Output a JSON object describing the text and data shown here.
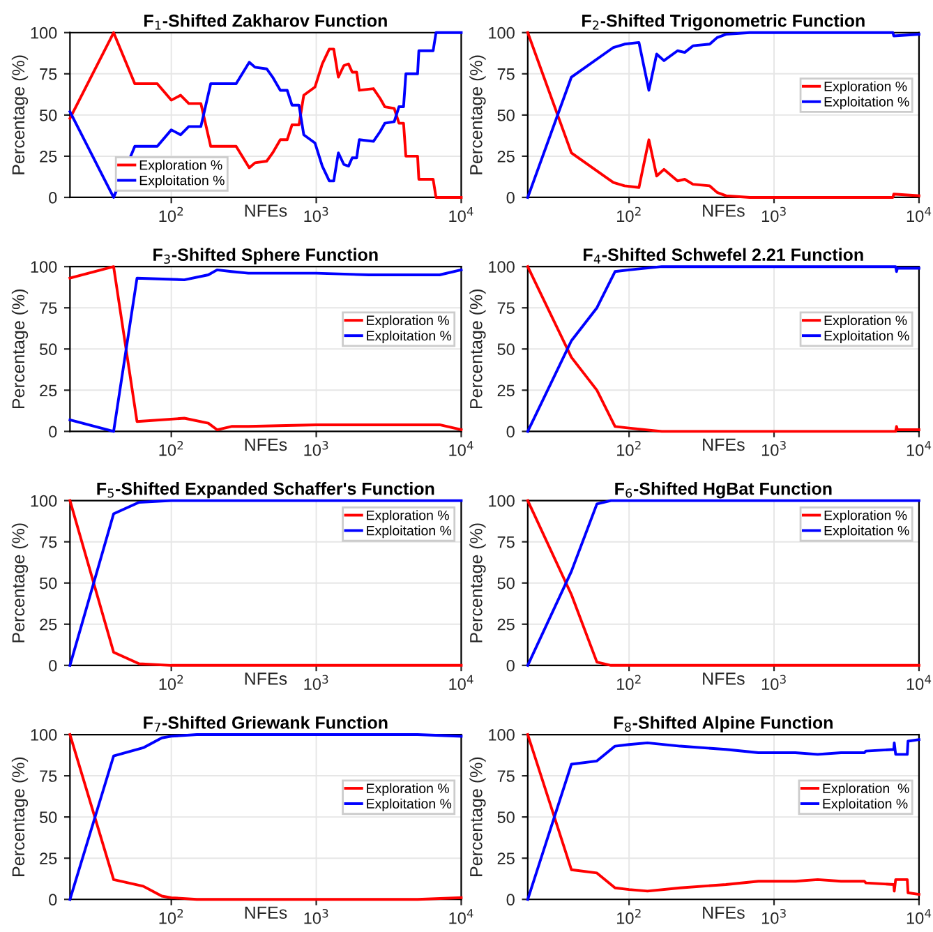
{
  "chart_data": [
    {
      "type": "line",
      "title": "F$_{1}$-Shifted Zakharov Function",
      "xlabel": "NFEs",
      "ylabel": "Percentage (%)",
      "log": "x",
      "grid": true,
      "legend": "bottom left",
      "xlim": [
        20,
        10000
      ],
      "ylim": [
        0,
        100
      ],
      "yticks": [
        0,
        25,
        50,
        75,
        100
      ],
      "xticks": [
        {
          "value": 100,
          "label": "10$^{2}$"
        },
        {
          "value": 1000,
          "label": "10$^{3}$"
        },
        {
          "value": 10000,
          "label": "10$^{4}$"
        }
      ],
      "x": [
        20,
        40,
        56,
        80,
        100,
        116,
        132,
        160,
        187,
        280,
        345,
        378,
        455,
        500,
        565,
        630,
        680,
        760,
        820,
        980,
        1100,
        1230,
        1320,
        1420,
        1550,
        1670,
        1770,
        1900,
        1980,
        2480,
        2760,
        2970,
        3450,
        3720,
        4000,
        4150,
        5000,
        5100,
        6400,
        6700,
        10000
      ],
      "series": [
        {
          "name": "Exploration %",
          "color": "#ff0000",
          "values": [
            48,
            100,
            69,
            69,
            59,
            62,
            57,
            57,
            31,
            31,
            18,
            21,
            22,
            27,
            35,
            35,
            44,
            44,
            62,
            67,
            81,
            90,
            90,
            73,
            80,
            81,
            76,
            76,
            65,
            66,
            60,
            55,
            54,
            45,
            45,
            25,
            25,
            11,
            11,
            0,
            0
          ]
        },
        {
          "name": "Exploitation %",
          "color": "#0000ff",
          "values": [
            52,
            0,
            31,
            31,
            41,
            38,
            43,
            43,
            69,
            69,
            82,
            79,
            78,
            73,
            65,
            65,
            56,
            56,
            38,
            33,
            19,
            10,
            10,
            27,
            20,
            19,
            24,
            24,
            35,
            34,
            40,
            45,
            46,
            55,
            55,
            75,
            75,
            89,
            89,
            100,
            100
          ]
        }
      ]
    },
    {
      "type": "line",
      "title": "F$_{2}$-Shifted Trigonometric Function",
      "xlabel": "NFEs",
      "ylabel": "Percentage (%)",
      "log": "x",
      "grid": true,
      "legend": "right",
      "xlim": [
        20,
        10000
      ],
      "ylim": [
        0,
        100
      ],
      "yticks": [
        0,
        25,
        50,
        75,
        100
      ],
      "xticks": [
        {
          "value": 100,
          "label": "10$^{2}$"
        },
        {
          "value": 1000,
          "label": "10$^{3}$"
        },
        {
          "value": 10000,
          "label": "10$^{4}$"
        }
      ],
      "x": [
        20,
        40,
        78,
        93,
        117,
        137,
        155,
        174,
        216,
        242,
        276,
        360,
        405,
        467,
        680,
        1000,
        6600,
        6700,
        10000
      ],
      "series": [
        {
          "name": "Exploration %",
          "color": "#ff0000",
          "values": [
            100,
            27,
            9,
            7,
            6,
            35,
            13,
            17,
            10,
            11,
            8,
            7,
            3,
            1,
            0,
            0,
            0,
            2,
            1
          ]
        },
        {
          "name": "Exploitation %",
          "color": "#0000ff",
          "values": [
            0,
            73,
            91,
            93,
            94,
            65,
            87,
            83,
            89,
            88,
            92,
            93,
            97,
            99,
            100,
            100,
            100,
            98,
            99
          ]
        }
      ]
    },
    {
      "type": "line",
      "title": "F$_{3}$-Shifted Sphere Function",
      "xlabel": "NFEs",
      "ylabel": "Percentage (%)",
      "log": "x",
      "grid": true,
      "legend": "right",
      "xlim": [
        20,
        10000
      ],
      "ylim": [
        0,
        100
      ],
      "yticks": [
        0,
        25,
        50,
        75,
        100
      ],
      "xticks": [
        {
          "value": 100,
          "label": "10$^{2}$"
        },
        {
          "value": 1000,
          "label": "10$^{3}$"
        },
        {
          "value": 10000,
          "label": "10$^{4}$"
        }
      ],
      "x": [
        20,
        40,
        58,
        123,
        180,
        207,
        260,
        340,
        1000,
        2300,
        3300,
        7100,
        10000
      ],
      "series": [
        {
          "name": "Exploration %",
          "color": "#ff0000",
          "values": [
            93,
            100,
            6,
            8,
            5,
            1,
            3,
            3,
            4,
            4,
            4,
            4,
            1
          ]
        },
        {
          "name": "Exploitation %",
          "color": "#0000ff",
          "values": [
            7,
            0,
            93,
            92,
            95,
            98,
            97,
            96,
            96,
            95,
            95,
            95,
            98
          ]
        }
      ]
    },
    {
      "type": "line",
      "title": "F$_{4}$-Shifted Schwefel 2.21 Function",
      "xlabel": "NFEs",
      "ylabel": "Percentage (%)",
      "log": "x",
      "grid": true,
      "legend": "right",
      "xlim": [
        20,
        10000
      ],
      "ylim": [
        0,
        100
      ],
      "yticks": [
        0,
        25,
        50,
        75,
        100
      ],
      "xticks": [
        {
          "value": 100,
          "label": "10$^{2}$"
        },
        {
          "value": 1000,
          "label": "10$^{3}$"
        },
        {
          "value": 10000,
          "label": "10$^{4}$"
        }
      ],
      "x": [
        20,
        40,
        60,
        80,
        100,
        168,
        1000,
        6900,
        7000,
        7100,
        10000
      ],
      "series": [
        {
          "name": "Exploration %",
          "color": "#ff0000",
          "values": [
            100,
            45,
            25,
            3,
            2,
            0,
            0,
            0,
            3,
            1,
            1
          ]
        },
        {
          "name": "Exploitation %",
          "color": "#0000ff",
          "values": [
            0,
            55,
            75,
            97,
            98,
            100,
            100,
            100,
            97,
            99,
            99
          ]
        }
      ]
    },
    {
      "type": "line",
      "title": "F$_{5}$-Shifted Expanded Schaffer's Function",
      "xlabel": "NFEs",
      "ylabel": "Percentage (%)",
      "log": "x",
      "grid": true,
      "legend": "top right",
      "xlim": [
        20,
        10000
      ],
      "ylim": [
        0,
        100
      ],
      "yticks": [
        0,
        25,
        50,
        75,
        100
      ],
      "xticks": [
        {
          "value": 100,
          "label": "10$^{2}$"
        },
        {
          "value": 1000,
          "label": "10$^{3}$"
        },
        {
          "value": 10000,
          "label": "10$^{4}$"
        }
      ],
      "x": [
        20,
        40,
        60,
        100,
        200,
        10000
      ],
      "series": [
        {
          "name": "Exploration %",
          "color": "#ff0000",
          "values": [
            100,
            8,
            1,
            0,
            0,
            0
          ]
        },
        {
          "name": "Exploitation %",
          "color": "#0000ff",
          "values": [
            0,
            92,
            99,
            100,
            100,
            100
          ]
        }
      ]
    },
    {
      "type": "line",
      "title": "F$_{6}$-Shifted HgBat Function",
      "xlabel": "NFEs",
      "ylabel": "Percentage (%)",
      "log": "x",
      "grid": true,
      "legend": "top right",
      "xlim": [
        20,
        10000
      ],
      "ylim": [
        0,
        100
      ],
      "yticks": [
        0,
        25,
        50,
        75,
        100
      ],
      "xticks": [
        {
          "value": 100,
          "label": "10$^{2}$"
        },
        {
          "value": 1000,
          "label": "10$^{3}$"
        },
        {
          "value": 10000,
          "label": "10$^{4}$"
        }
      ],
      "x": [
        20,
        40,
        60,
        75,
        100,
        10000
      ],
      "series": [
        {
          "name": "Exploration %",
          "color": "#ff0000",
          "values": [
            100,
            43,
            2,
            0,
            0,
            0
          ]
        },
        {
          "name": "Exploitation %",
          "color": "#0000ff",
          "values": [
            0,
            57,
            98,
            100,
            100,
            100
          ]
        }
      ]
    },
    {
      "type": "line",
      "title": "F$_{7}$-Shifted Griewank Function",
      "xlabel": "NFEs",
      "ylabel": "Percentage (%)",
      "log": "x",
      "grid": true,
      "legend": "right",
      "xlim": [
        20,
        10000
      ],
      "ylim": [
        0,
        100
      ],
      "yticks": [
        0,
        25,
        50,
        75,
        100
      ],
      "xticks": [
        {
          "value": 100,
          "label": "10$^{2}$"
        },
        {
          "value": 1000,
          "label": "10$^{3}$"
        },
        {
          "value": 10000,
          "label": "10$^{4}$"
        }
      ],
      "x": [
        20,
        40,
        64,
        86,
        100,
        150,
        1000,
        5000,
        10000
      ],
      "series": [
        {
          "name": "Exploration %",
          "color": "#ff0000",
          "values": [
            100,
            12,
            8,
            2,
            1,
            0,
            0,
            0,
            1
          ]
        },
        {
          "name": "Exploitation %",
          "color": "#0000ff",
          "values": [
            0,
            87,
            92,
            98,
            99,
            100,
            100,
            100,
            99
          ]
        }
      ]
    },
    {
      "type": "line",
      "title": "F$_{8}$-Shifted Alpine Function",
      "xlabel": "NFEs",
      "ylabel": "Percentage (%)",
      "log": "x",
      "grid": true,
      "legend": "right",
      "xlim": [
        20,
        10000
      ],
      "ylim": [
        0,
        100
      ],
      "yticks": [
        0,
        25,
        50,
        75,
        100
      ],
      "xticks": [
        {
          "value": 100,
          "label": "10$^{2}$"
        },
        {
          "value": 1000,
          "label": "10$^{3}$"
        },
        {
          "value": 10000,
          "label": "10$^{4}$"
        }
      ],
      "x": [
        20,
        40,
        60,
        80,
        100,
        134,
        225,
        465,
        780,
        1400,
        2000,
        2900,
        4200,
        4300,
        6700,
        6750,
        6900,
        8300,
        8400,
        10000
      ],
      "series": [
        {
          "name": "Exploration  %",
          "color": "#ff0000",
          "values": [
            100,
            18,
            16,
            7,
            6,
            5,
            7,
            9,
            11,
            11,
            12,
            11,
            11,
            10,
            9,
            5,
            12,
            12,
            4,
            3
          ]
        },
        {
          "name": "Exploitation %",
          "color": "#0000ff",
          "values": [
            0,
            82,
            84,
            93,
            94,
            95,
            93,
            91,
            89,
            89,
            88,
            89,
            89,
            90,
            91,
            95,
            88,
            88,
            96,
            97
          ]
        }
      ]
    }
  ]
}
